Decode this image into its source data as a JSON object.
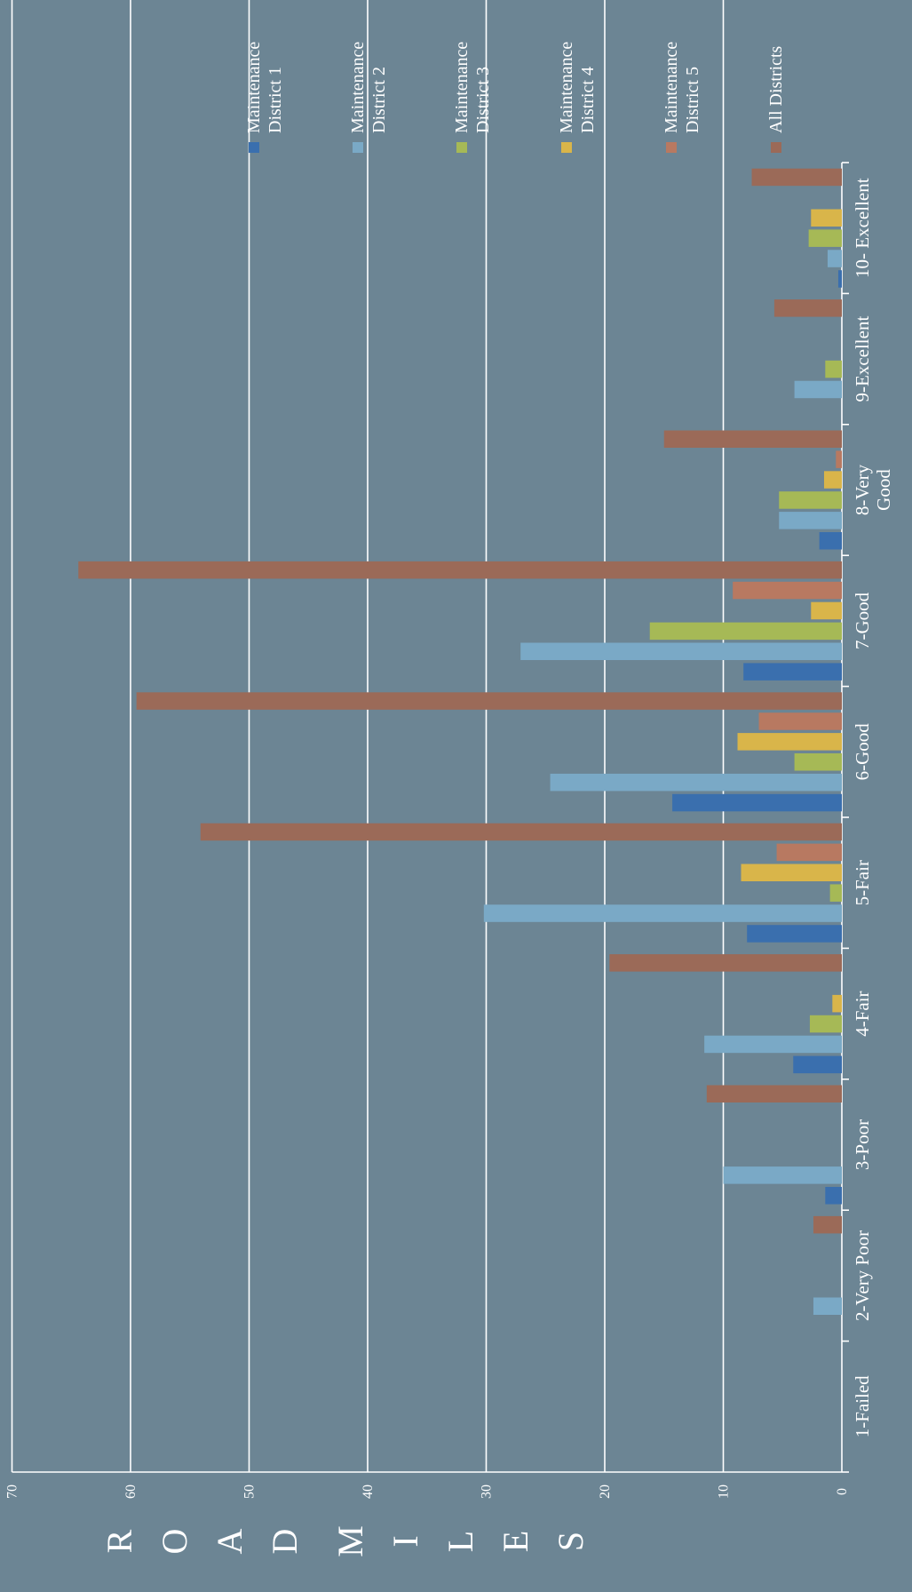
{
  "chart_data": {
    "type": "bar",
    "orientation": "vertical",
    "rotated": "90deg clockwise",
    "ylabel_letters": [
      "R",
      "O",
      "A",
      "D",
      "M",
      "I",
      "L",
      "E",
      "S"
    ],
    "ylim": [
      0,
      70
    ],
    "yticks": [
      0,
      10,
      20,
      30,
      40,
      50,
      60,
      70
    ],
    "grid": true,
    "legend_position": "right",
    "categories": [
      [
        "10- Excellent"
      ],
      [
        "9-Excellent"
      ],
      [
        "8-Very",
        "Good"
      ],
      [
        "7-Good"
      ],
      [
        "6-Good"
      ],
      [
        "5-Fair"
      ],
      [
        "4-Fair"
      ],
      [
        "3-Poor"
      ],
      [
        "2-Very Poor"
      ],
      [
        "1-Failed"
      ]
    ],
    "series": [
      {
        "name": [
          "Maintenance",
          "District 1"
        ],
        "color": "#3a6fae",
        "values": [
          0.3,
          0,
          1.9,
          8.3,
          14.3,
          8,
          4.1,
          1.4,
          0,
          0
        ]
      },
      {
        "name": [
          "Maintenance",
          "District 2"
        ],
        "color": "#7aa9c6",
        "values": [
          1.2,
          4,
          5.3,
          27.1,
          24.6,
          30.2,
          11.6,
          10,
          2.4,
          0
        ]
      },
      {
        "name": [
          "Maintenance",
          "District 3"
        ],
        "color": "#a6b956",
        "values": [
          2.8,
          1.4,
          5.3,
          16.2,
          4,
          1,
          2.7,
          0,
          0,
          0
        ]
      },
      {
        "name": [
          "Maintenance",
          "District 4"
        ],
        "color": "#d9b54a",
        "values": [
          2.6,
          0,
          1.5,
          2.6,
          8.8,
          8.5,
          0.8,
          0,
          0,
          0
        ]
      },
      {
        "name": [
          "Maintenance",
          "District 5"
        ],
        "color": "#b87961",
        "values": [
          0,
          0,
          0.5,
          9.2,
          7,
          5.5,
          0,
          0,
          0,
          0
        ]
      },
      {
        "name": [
          "All Districts"
        ],
        "color": "#9b6a58",
        "values": [
          7.6,
          5.7,
          15,
          64.4,
          59.5,
          54.1,
          19.6,
          11.4,
          2.4,
          0
        ]
      }
    ]
  }
}
